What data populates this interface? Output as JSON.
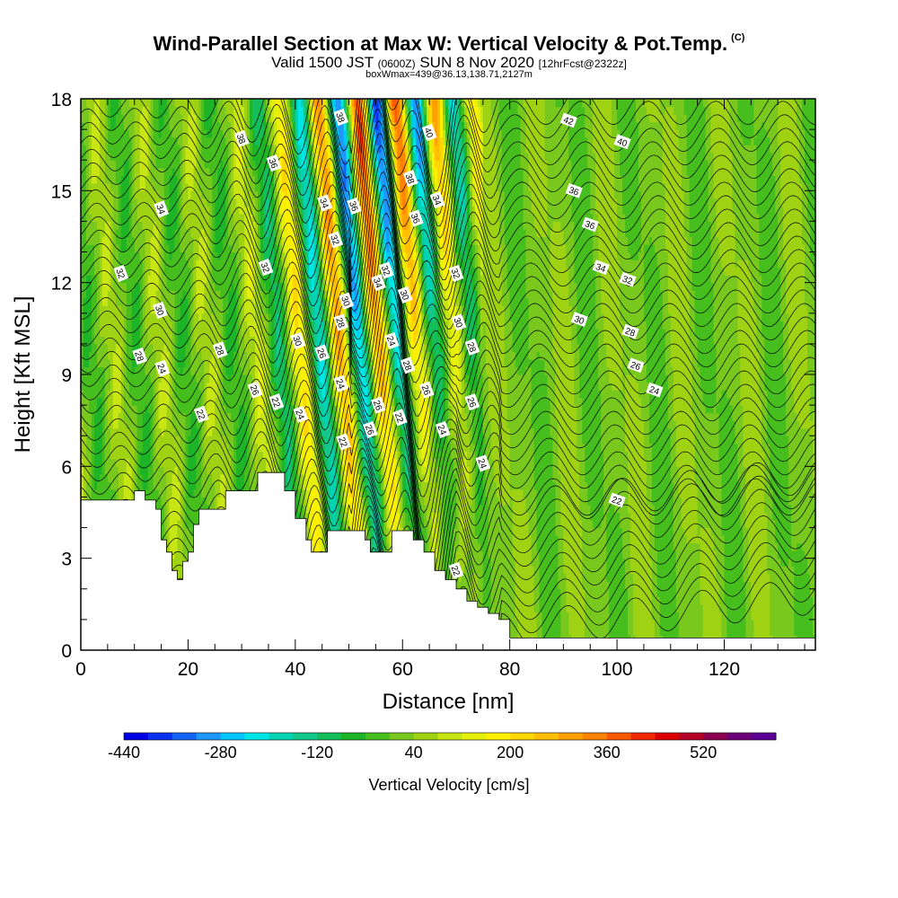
{
  "chart_data": {
    "type": "heatmap",
    "title": "Wind-Parallel Section at Max W: Vertical Velocity & Pot.Temp.",
    "title_mark": "(C)",
    "subtitle_main": "Valid 1500 JST",
    "subtitle_utc": "(0600Z)",
    "subtitle_date": "SUN 8 Nov 2020",
    "subtitle_fcst": "[12hrFcst@2322z]",
    "subtitle2": "boxWmax=439@36.13,138.71,2127m",
    "xlabel": "Distance [nm]",
    "ylabel": "Height [Kft MSL]",
    "xlim": [
      0,
      137
    ],
    "ylim": [
      0,
      18
    ],
    "xticks": [
      "0",
      "20",
      "40",
      "60",
      "80",
      "100",
      "120"
    ],
    "yticks": [
      "0",
      "3",
      "6",
      "9",
      "12",
      "15",
      "18"
    ],
    "colorbar": {
      "title": "Vertical Velocity [cm/s]",
      "min": -440,
      "max": 520,
      "step": 40,
      "tick_labels": [
        "-440",
        "-280",
        "-120",
        "40",
        "200",
        "360",
        "520"
      ],
      "colors": [
        "#0000e6",
        "#0a32f0",
        "#1464f5",
        "#1e96fa",
        "#00c8ff",
        "#00e6e6",
        "#00d2b4",
        "#14c88c",
        "#14be5a",
        "#1eb428",
        "#46be1e",
        "#78c81e",
        "#a0d214",
        "#c8e614",
        "#e6f00a",
        "#fff000",
        "#ffd700",
        "#ffbe00",
        "#ffa000",
        "#ff8200",
        "#ff5a00",
        "#f02800",
        "#dc0000",
        "#b40028",
        "#8c0050",
        "#6e0078",
        "#5a0096"
      ]
    },
    "terrain_kft": [
      [
        0,
        4.9
      ],
      [
        8,
        4.9
      ],
      [
        10,
        5.2
      ],
      [
        12,
        4.9
      ],
      [
        14,
        4.6
      ],
      [
        15,
        3.6
      ],
      [
        16,
        3.2
      ],
      [
        17,
        2.6
      ],
      [
        18,
        2.3
      ],
      [
        19,
        2.9
      ],
      [
        20,
        3.2
      ],
      [
        21,
        4.1
      ],
      [
        22,
        4.6
      ],
      [
        25,
        4.6
      ],
      [
        27,
        5.2
      ],
      [
        32,
        5.2
      ],
      [
        33,
        5.8
      ],
      [
        37,
        5.8
      ],
      [
        38,
        5.2
      ],
      [
        40,
        4.3
      ],
      [
        42,
        3.6
      ],
      [
        43,
        3.2
      ],
      [
        45,
        3.2
      ],
      [
        46,
        3.9
      ],
      [
        48,
        3.9
      ],
      [
        52,
        3.9
      ],
      [
        53,
        3.6
      ],
      [
        54,
        3.2
      ],
      [
        57,
        3.2
      ],
      [
        58,
        3.9
      ],
      [
        60,
        3.9
      ],
      [
        62,
        3.6
      ],
      [
        64,
        3.2
      ],
      [
        66,
        2.6
      ],
      [
        68,
        2.3
      ],
      [
        70,
        2.0
      ],
      [
        72,
        1.6
      ],
      [
        74,
        1.4
      ],
      [
        76,
        1.2
      ],
      [
        78,
        1.0
      ],
      [
        80,
        0.4
      ],
      [
        137,
        0.4
      ]
    ],
    "w_max_cm_s": 439,
    "theta_contour_labels": [
      {
        "x": 30,
        "y": 16.7,
        "text": "38"
      },
      {
        "x": 36,
        "y": 15.9,
        "text": "36"
      },
      {
        "x": 15,
        "y": 14.4,
        "text": "34"
      },
      {
        "x": 7.5,
        "y": 12.3,
        "text": "32"
      },
      {
        "x": 14.8,
        "y": 11.1,
        "text": "30"
      },
      {
        "x": 11,
        "y": 9.6,
        "text": "28"
      },
      {
        "x": 15.2,
        "y": 9.2,
        "text": "24"
      },
      {
        "x": 22.5,
        "y": 7.7,
        "text": "22"
      },
      {
        "x": 26,
        "y": 9.8,
        "text": "28"
      },
      {
        "x": 32.5,
        "y": 8.5,
        "text": "26"
      },
      {
        "x": 36.5,
        "y": 8.1,
        "text": "22"
      },
      {
        "x": 34.5,
        "y": 12.5,
        "text": "32"
      },
      {
        "x": 40.5,
        "y": 10.1,
        "text": "30"
      },
      {
        "x": 41,
        "y": 7.7,
        "text": "24"
      },
      {
        "x": 45,
        "y": 9.7,
        "text": "26"
      },
      {
        "x": 45.5,
        "y": 14.6,
        "text": "34"
      },
      {
        "x": 47.5,
        "y": 13.4,
        "text": "32"
      },
      {
        "x": 48.5,
        "y": 17.4,
        "text": "38"
      },
      {
        "x": 48.5,
        "y": 10.7,
        "text": "28"
      },
      {
        "x": 49.5,
        "y": 11.4,
        "text": "30"
      },
      {
        "x": 48.5,
        "y": 8.7,
        "text": "24"
      },
      {
        "x": 49,
        "y": 6.8,
        "text": "22"
      },
      {
        "x": 51,
        "y": 14.5,
        "text": "36"
      },
      {
        "x": 54,
        "y": 7.2,
        "text": "26"
      },
      {
        "x": 55.5,
        "y": 8.0,
        "text": "26"
      },
      {
        "x": 55.5,
        "y": 12.0,
        "text": "34"
      },
      {
        "x": 57,
        "y": 12.4,
        "text": "32"
      },
      {
        "x": 58,
        "y": 10.1,
        "text": "24"
      },
      {
        "x": 59.5,
        "y": 7.6,
        "text": "22"
      },
      {
        "x": 60.5,
        "y": 11.6,
        "text": "30"
      },
      {
        "x": 61,
        "y": 9.3,
        "text": "28"
      },
      {
        "x": 61.5,
        "y": 15.4,
        "text": "38"
      },
      {
        "x": 62.5,
        "y": 14.1,
        "text": "36"
      },
      {
        "x": 64.5,
        "y": 8.5,
        "text": "26"
      },
      {
        "x": 65,
        "y": 16.9,
        "text": "40"
      },
      {
        "x": 66.5,
        "y": 14.7,
        "text": "34"
      },
      {
        "x": 67.5,
        "y": 7.2,
        "text": "24"
      },
      {
        "x": 70,
        "y": 12.3,
        "text": "32"
      },
      {
        "x": 70.5,
        "y": 10.7,
        "text": "30"
      },
      {
        "x": 73,
        "y": 9.9,
        "text": "28"
      },
      {
        "x": 73,
        "y": 8.1,
        "text": "26"
      },
      {
        "x": 75,
        "y": 6.1,
        "text": "24"
      },
      {
        "x": 70,
        "y": 2.6,
        "text": "22"
      },
      {
        "x": 91,
        "y": 17.3,
        "text": "42"
      },
      {
        "x": 101,
        "y": 16.6,
        "text": "40"
      },
      {
        "x": 92,
        "y": 15.0,
        "text": "36"
      },
      {
        "x": 95,
        "y": 13.9,
        "text": "36"
      },
      {
        "x": 97,
        "y": 12.5,
        "text": "34"
      },
      {
        "x": 102,
        "y": 12.1,
        "text": "32"
      },
      {
        "x": 93,
        "y": 10.8,
        "text": "30"
      },
      {
        "x": 102.5,
        "y": 10.4,
        "text": "28"
      },
      {
        "x": 103.5,
        "y": 9.3,
        "text": "26"
      },
      {
        "x": 107,
        "y": 8.5,
        "text": "24"
      },
      {
        "x": 100,
        "y": 4.9,
        "text": "22"
      }
    ]
  }
}
